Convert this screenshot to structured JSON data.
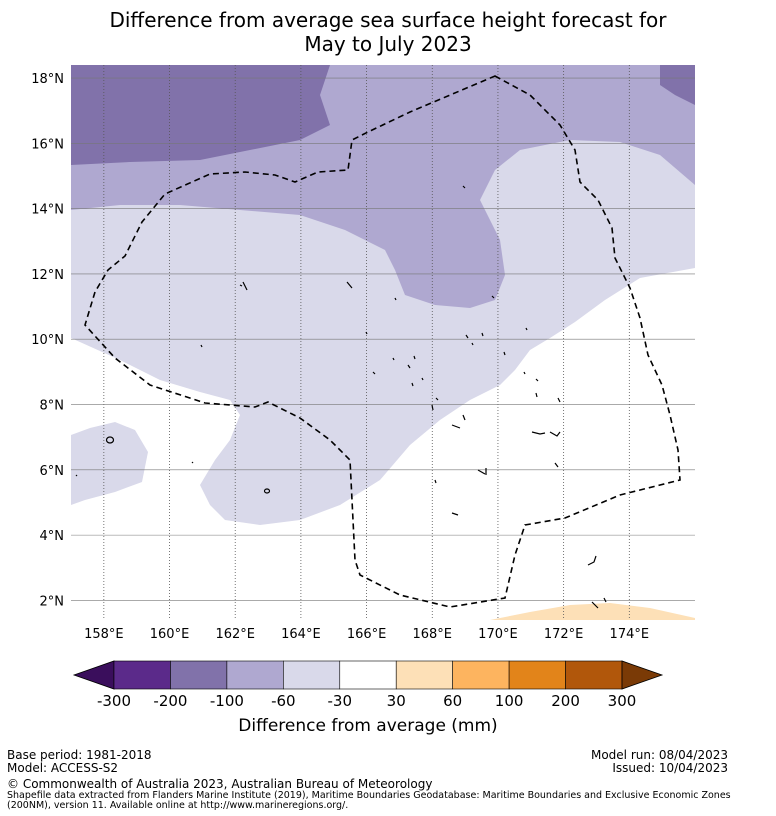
{
  "title": {
    "line1": "Difference from average sea surface height forecast for",
    "line2": "May to July 2023"
  },
  "axes": {
    "lon_ticks": [
      "158°E",
      "160°E",
      "162°E",
      "164°E",
      "166°E",
      "168°E",
      "170°E",
      "172°E",
      "174°E"
    ],
    "lat_ticks": [
      "2°N",
      "4°N",
      "6°N",
      "8°N",
      "10°N",
      "12°N",
      "14°N",
      "16°N",
      "18°N"
    ],
    "lon_values": [
      158,
      160,
      162,
      164,
      166,
      168,
      170,
      172,
      174
    ],
    "lat_values": [
      2,
      4,
      6,
      8,
      10,
      12,
      14,
      16,
      18
    ],
    "lon_range": [
      157,
      176
    ],
    "lat_range": [
      1.4,
      18.4
    ]
  },
  "colorbar": {
    "ticks": [
      "-300",
      "-200",
      "-100",
      "-60",
      "-30",
      "30",
      "60",
      "100",
      "200",
      "300"
    ],
    "colors": [
      "#5b2a8a",
      "#8172aa",
      "#afa8d0",
      "#d9d9ea",
      "#ffffff",
      "#fde0b7",
      "#fdb45f",
      "#e2841a",
      "#b1570b"
    ],
    "extend_low_color": "#3a0e5c",
    "extend_high_color": "#7a3a06",
    "label": "Difference from average (mm)"
  },
  "map_colors": {
    "lev_neg100_200": "#8172aa",
    "lev_neg60_100": "#afa8d0",
    "lev_neg30_60": "#d9d9ea",
    "neutral": "#ffffff",
    "lev_30_60": "#fde0b7"
  },
  "footer": {
    "base_period": "Base period: 1981-2018",
    "model": "Model: ACCESS-S2",
    "model_run": "Model run: 08/04/2023",
    "issued": "Issued: 10/04/2023",
    "copyright": "© Commonwealth of Australia 2023, Australian Bureau of Meteorology",
    "shapefile_line1": "Shapefile data extracted from Flanders Marine Institute (2019), Maritime Boundaries Geodatabase: Maritime Boundaries and Exclusive Economic Zones",
    "shapefile_line2": "(200NM), version 11. Available online at http://www.marineregions.org/."
  }
}
